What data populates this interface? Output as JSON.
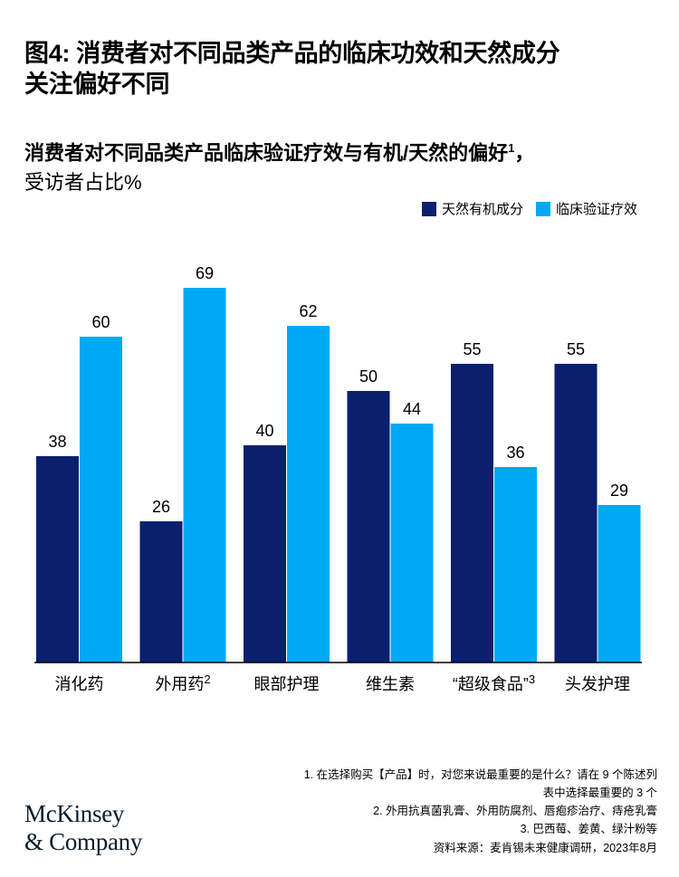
{
  "title_line1": "图4: 消费者对不同品类产品的临床功效和天然成分",
  "title_line2": "关注偏好不同",
  "subtitle_bold": "消费者对不同品类产品临床验证疗效与有机/天然的偏好",
  "subtitle_sup": "1",
  "subtitle_bold_tail": "，",
  "subtitle_line2": "受访者占比%",
  "colors": {
    "dark": "#0a1f6e",
    "light": "#00a9f4",
    "axis": "#000000"
  },
  "chart_data": {
    "type": "bar",
    "categories": [
      "消化药",
      "外用药",
      "眼部护理",
      "维生素",
      "“超级食品”",
      "头发护理"
    ],
    "category_sups": [
      "",
      "2",
      "",
      "",
      "3",
      ""
    ],
    "series": [
      {
        "name": "天然有机成分",
        "values": [
          38,
          26,
          40,
          50,
          55,
          55
        ]
      },
      {
        "name": "临床验证疗效",
        "values": [
          60,
          69,
          62,
          44,
          36,
          29
        ]
      }
    ],
    "ylim": [
      0,
      80
    ],
    "grid": false,
    "legend": "top-right"
  },
  "footnotes": [
    "1.   在选择购买【产品】时，对您来说最重要的是什么？请在 9 个陈述列",
    "表中选择最重要的 3 个",
    "2.   外用抗真菌乳膏、外用防腐剂、唇疱疹治疗、痔疮乳膏",
    "3.   巴西莓、姜黄、绿汁粉等"
  ],
  "source": "资料来源：麦肯锡未来健康调研，2023年8月",
  "logo_line1": "McKinsey",
  "logo_line2": "& Company"
}
